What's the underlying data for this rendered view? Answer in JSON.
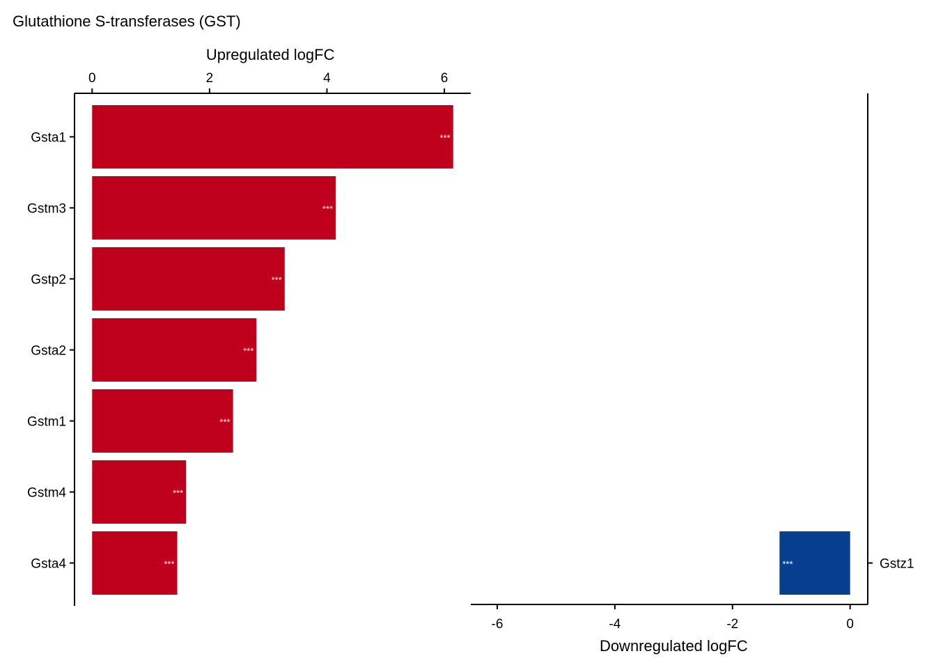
{
  "chart_data": [
    {
      "type": "bar",
      "orientation": "horizontal",
      "title": "Glutathione S-transferases (GST)",
      "xlabel": "Upregulated logFC",
      "axis_position": "top",
      "xlim": [
        -0.3,
        6.45
      ],
      "ticks": [
        0,
        2,
        4,
        6
      ],
      "color": "#BE001C",
      "categories": [
        "Gsta1",
        "Gstm3",
        "Gstp2",
        "Gsta2",
        "Gstm1",
        "Gstm4",
        "Gsta4"
      ],
      "values": [
        6.15,
        4.15,
        3.28,
        2.8,
        2.4,
        1.6,
        1.45
      ],
      "significance": [
        "***",
        "***",
        "***",
        "***",
        "***",
        "***",
        "***"
      ]
    },
    {
      "type": "bar",
      "orientation": "horizontal",
      "xlabel": "Downregulated logFC",
      "axis_position": "bottom",
      "xlim": [
        -6.45,
        0.3
      ],
      "ticks": [
        -6,
        -4,
        -2,
        0
      ],
      "color": "#053F8D",
      "categories": [
        "Gstz1"
      ],
      "values": [
        -1.2
      ],
      "significance": [
        "***"
      ]
    }
  ]
}
